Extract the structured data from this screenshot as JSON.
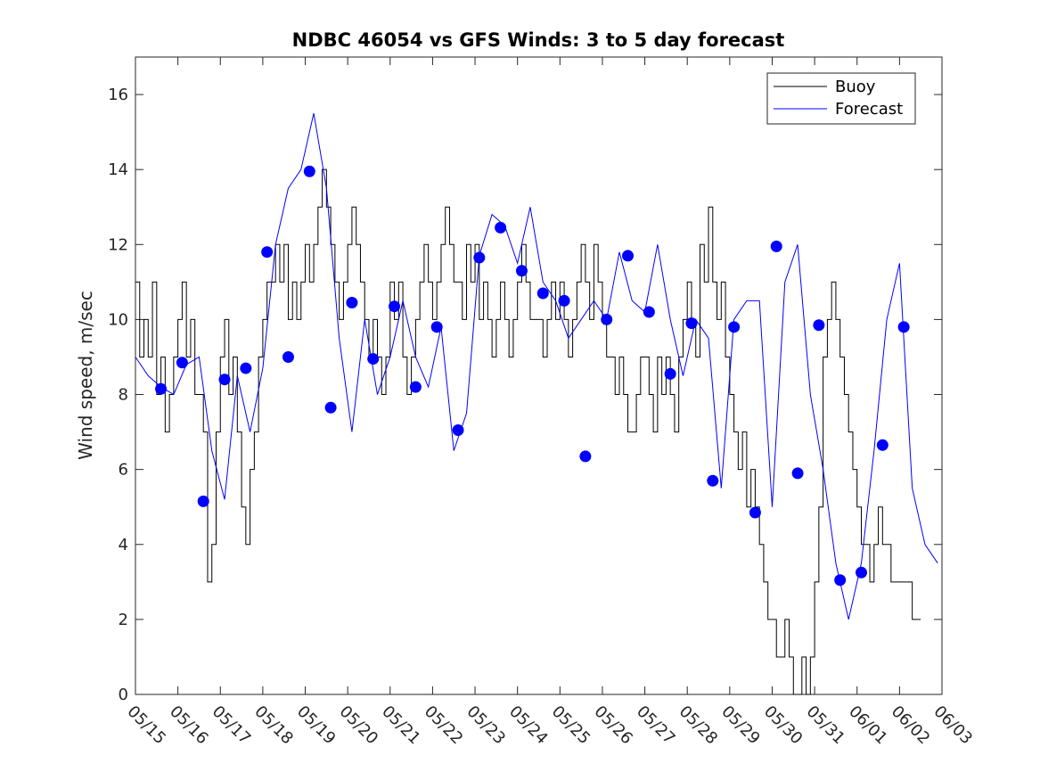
{
  "chart_data": {
    "type": "line",
    "title": "NDBC 46054 vs GFS Winds: 3 to 5 day forecast",
    "xlabel": "",
    "ylabel": "Wind speed, m/sec",
    "ylim": [
      0,
      17
    ],
    "xlim": [
      0,
      19
    ],
    "y_ticks": [
      0,
      2,
      4,
      6,
      8,
      10,
      12,
      14,
      16
    ],
    "x_ticks": [
      "05/15",
      "05/16",
      "05/17",
      "05/18",
      "05/19",
      "05/20",
      "05/21",
      "05/22",
      "05/23",
      "05/24",
      "05/25",
      "05/26",
      "05/27",
      "05/28",
      "05/29",
      "05/30",
      "05/31",
      "06/01",
      "06/02",
      "06/03"
    ],
    "x_units": "days since 05/15",
    "grid": false,
    "legend_position": "top-right",
    "colors": {
      "buoy": "#000000",
      "forecast": "#0000ff"
    },
    "series": [
      {
        "name": "Buoy",
        "style": "step",
        "x": [
          0.0,
          0.1,
          0.2,
          0.3,
          0.4,
          0.5,
          0.6,
          0.7,
          0.8,
          0.9,
          1.0,
          1.1,
          1.2,
          1.3,
          1.4,
          1.5,
          1.6,
          1.7,
          1.8,
          1.9,
          2.0,
          2.1,
          2.2,
          2.3,
          2.4,
          2.5,
          2.6,
          2.7,
          2.8,
          2.9,
          3.0,
          3.1,
          3.2,
          3.3,
          3.4,
          3.5,
          3.6,
          3.7,
          3.8,
          3.9,
          4.0,
          4.1,
          4.2,
          4.3,
          4.4,
          4.5,
          4.6,
          4.7,
          4.8,
          4.9,
          5.0,
          5.1,
          5.2,
          5.3,
          5.4,
          5.5,
          5.6,
          5.7,
          5.8,
          5.9,
          6.0,
          6.1,
          6.2,
          6.3,
          6.4,
          6.5,
          6.6,
          6.7,
          6.8,
          6.9,
          7.0,
          7.1,
          7.2,
          7.3,
          7.4,
          7.5,
          7.6,
          7.7,
          7.8,
          7.9,
          8.0,
          8.1,
          8.2,
          8.3,
          8.4,
          8.5,
          8.6,
          8.7,
          8.8,
          8.9,
          9.0,
          9.1,
          9.2,
          9.3,
          9.4,
          9.5,
          9.6,
          9.7,
          9.8,
          9.9,
          10.0,
          10.1,
          10.2,
          10.3,
          10.4,
          10.5,
          10.6,
          10.7,
          10.8,
          10.9,
          11.0,
          11.1,
          11.2,
          11.3,
          11.4,
          11.5,
          11.6,
          11.7,
          11.8,
          11.9,
          12.0,
          12.1,
          12.2,
          12.3,
          12.4,
          12.5,
          12.6,
          12.7,
          12.8,
          12.9,
          13.0,
          13.1,
          13.2,
          13.3,
          13.4,
          13.5,
          13.6,
          13.7,
          13.8,
          13.9,
          14.0,
          14.1,
          14.2,
          14.3,
          14.4,
          14.5,
          14.6,
          14.7,
          14.8,
          14.9,
          15.0,
          15.1,
          15.2,
          15.3,
          15.4,
          15.5,
          15.6,
          15.7,
          15.8,
          15.9,
          16.0,
          16.1,
          16.2,
          16.3,
          16.4,
          16.5,
          16.6,
          16.7,
          16.8,
          16.9,
          17.0,
          17.1,
          17.2,
          17.3,
          17.4,
          17.5,
          17.6,
          17.7,
          17.8,
          17.9,
          18.0,
          18.1,
          18.2,
          18.3,
          18.4
        ],
        "values": [
          11,
          9,
          10,
          9,
          11,
          8,
          9,
          7,
          8,
          9,
          10,
          11,
          9,
          10,
          8,
          8,
          7,
          3,
          4,
          7,
          9,
          10,
          8,
          9,
          7,
          5,
          4,
          6,
          7,
          9,
          10,
          11,
          11,
          12,
          11,
          12,
          10,
          11,
          10,
          11,
          12,
          11,
          12,
          13,
          14,
          13,
          12,
          11,
          10,
          11,
          12,
          13,
          12,
          11,
          10,
          9,
          10,
          9,
          8,
          9,
          11,
          10,
          11,
          9,
          8,
          9,
          10,
          11,
          12,
          11,
          10,
          11,
          12,
          13,
          12,
          11,
          11,
          10,
          12,
          11,
          12,
          10,
          11,
          10,
          9,
          10,
          11,
          10,
          9,
          10,
          11,
          12,
          11,
          10,
          10,
          10,
          9,
          10,
          11,
          10,
          11,
          10,
          9,
          10,
          11,
          12,
          11,
          10,
          12,
          11,
          10,
          9,
          9,
          8,
          9,
          8,
          7,
          7,
          8,
          9,
          9,
          8,
          7,
          9,
          8,
          9,
          8,
          7,
          9,
          10,
          11,
          10,
          9,
          12,
          11,
          13,
          11,
          10,
          11,
          9,
          8,
          7,
          6,
          7,
          5,
          6,
          5,
          4,
          3,
          2,
          2,
          1,
          1,
          2,
          1,
          0,
          0,
          1,
          0,
          1,
          3,
          5,
          9,
          10,
          11,
          10,
          9,
          8,
          7,
          6,
          5,
          4,
          4,
          3,
          4,
          5,
          4,
          4,
          3,
          3,
          3,
          3,
          3,
          2,
          2
        ]
      },
      {
        "name": "Forecast",
        "style": "line",
        "x": [
          0.0,
          0.3,
          0.6,
          0.9,
          1.2,
          1.5,
          1.8,
          2.1,
          2.4,
          2.7,
          3.0,
          3.3,
          3.6,
          3.9,
          4.2,
          4.5,
          4.8,
          5.1,
          5.4,
          5.7,
          6.0,
          6.3,
          6.6,
          6.9,
          7.2,
          7.5,
          7.8,
          8.1,
          8.4,
          8.7,
          9.0,
          9.3,
          9.6,
          9.9,
          10.2,
          10.5,
          10.8,
          11.1,
          11.4,
          11.7,
          12.0,
          12.3,
          12.6,
          12.9,
          13.2,
          13.5,
          13.8,
          14.1,
          14.4,
          14.7,
          15.0,
          15.3,
          15.6,
          15.9,
          16.2,
          16.5,
          16.8,
          17.1,
          17.4,
          17.7,
          18.0,
          18.3,
          18.6,
          18.9
        ],
        "values": [
          9.0,
          8.5,
          8.2,
          8.0,
          8.8,
          9.0,
          6.5,
          5.2,
          8.5,
          7.0,
          8.7,
          12.0,
          13.5,
          14.0,
          15.5,
          13.5,
          9.5,
          7.0,
          10.0,
          8.0,
          9.0,
          10.5,
          9.0,
          8.2,
          9.8,
          6.5,
          7.5,
          11.7,
          12.8,
          12.5,
          11.5,
          13.0,
          11.0,
          10.5,
          9.5,
          10.0,
          10.5,
          10.0,
          11.8,
          10.5,
          10.2,
          12.0,
          10.0,
          8.5,
          10.0,
          9.5,
          5.5,
          10.0,
          10.5,
          10.5,
          5.0,
          11.0,
          12.0,
          8.0,
          6.0,
          3.5,
          2.0,
          3.5,
          6.5,
          10.0,
          11.5,
          5.5,
          4.0,
          3.5
        ]
      }
    ],
    "markers": {
      "color": "#0000ff",
      "x": [
        0.6,
        1.1,
        1.6,
        2.1,
        2.6,
        3.1,
        3.6,
        4.1,
        4.6,
        5.1,
        5.6,
        6.1,
        6.6,
        7.1,
        7.6,
        8.1,
        8.6,
        9.1,
        9.6,
        10.1,
        10.6,
        11.1,
        11.6,
        12.1,
        12.6,
        13.1,
        13.6,
        14.1,
        14.6,
        15.1,
        15.6,
        16.1,
        16.6,
        17.1,
        17.6,
        18.1
      ],
      "y": [
        8.15,
        8.85,
        5.15,
        8.4,
        8.7,
        11.8,
        9.0,
        13.95,
        7.65,
        10.45,
        8.95,
        10.35,
        8.2,
        9.8,
        7.05,
        11.65,
        12.45,
        11.3,
        10.7,
        10.5,
        6.35,
        10.0,
        11.7,
        10.2,
        8.55,
        9.9,
        5.7,
        9.8,
        4.85,
        11.95,
        5.9,
        9.85,
        3.05,
        3.25,
        6.65,
        9.8
      ]
    }
  },
  "legend": {
    "buoy_label": "Buoy",
    "forecast_label": "Forecast"
  }
}
